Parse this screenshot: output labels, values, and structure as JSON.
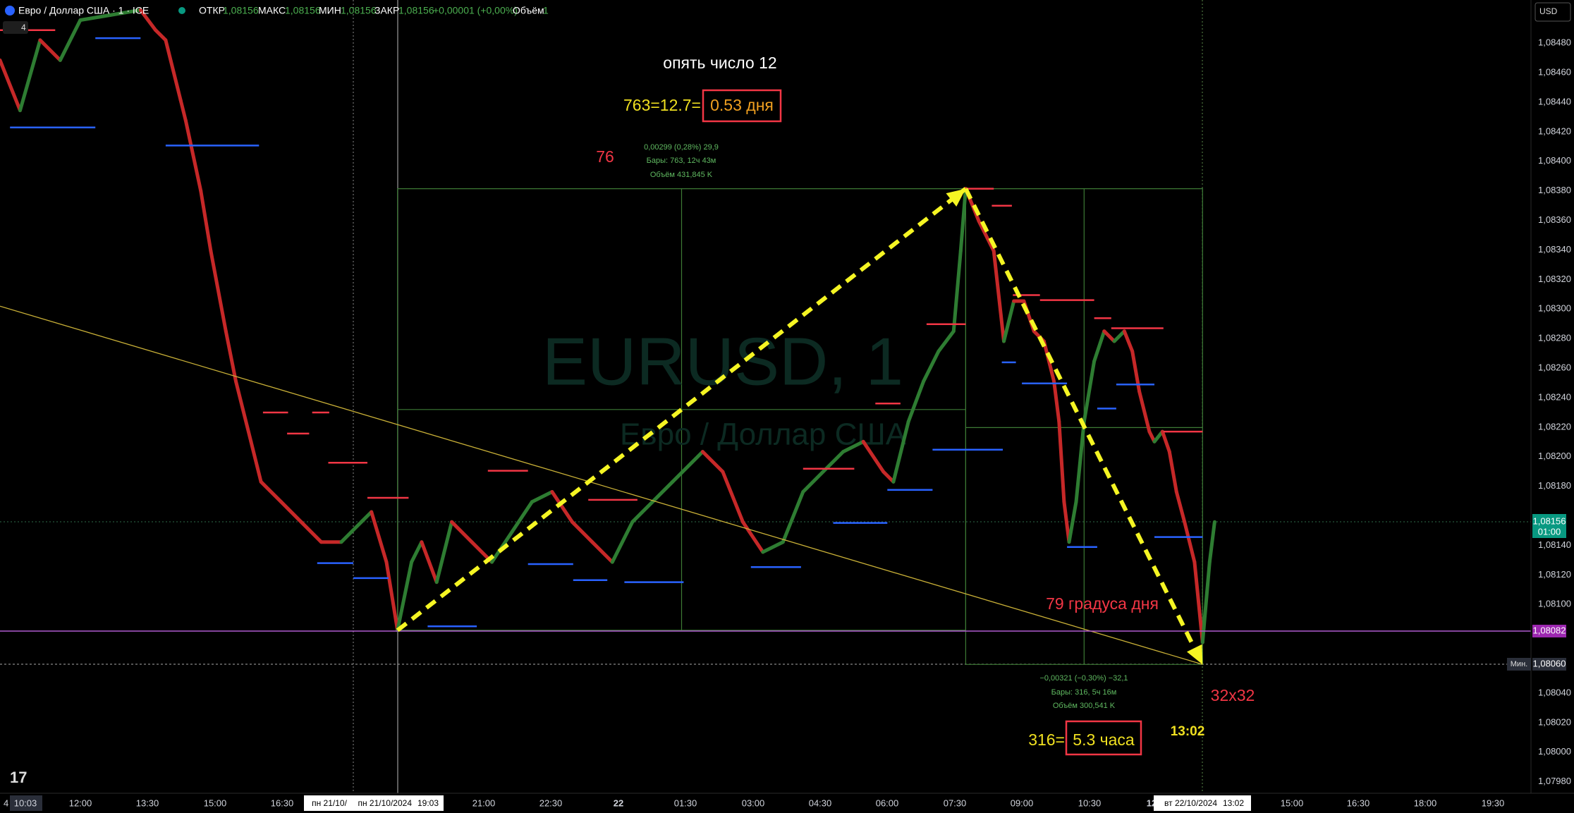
{
  "header": {
    "symbol": "Евро / Доллар США · 1 · ICE",
    "open_label": "ОТКР",
    "open": "1,08156",
    "high_label": "МАКС",
    "high": "1,08156",
    "low_label": "МИН",
    "low": "1,08156",
    "close_label": "ЗАКР",
    "close": "1,08156",
    "change": "+0,00001 (+0,00%)",
    "volume_label": "Объём",
    "volume": "1",
    "indicators": "4"
  },
  "price_axis": {
    "currency": "USD",
    "labels": [
      "1,08480",
      "1,08460",
      "1,08440",
      "1,08420",
      "1,08400",
      "1,08380",
      "1,08360",
      "1,08340",
      "1,08320",
      "1,08300",
      "1,08280",
      "1,08260",
      "1,08240",
      "1,08220",
      "1,08200",
      "1,08180",
      null,
      "1,08140",
      "1,08120",
      "1,08100",
      null,
      null,
      "1,08040",
      "1,08020",
      "1,08000",
      "1,07980"
    ],
    "last_price": "1,08156",
    "countdown": "01:00",
    "line_price": "1,08082",
    "min_tag": "Мин.",
    "min_price": "1,08060"
  },
  "time_axis": {
    "labels": [
      "4",
      "10:03",
      "12:00",
      "13:30",
      "15:00",
      "16:30",
      "пн 21/10/",
      "пн 21/10/2024",
      "19:03",
      "21:00",
      "22:30",
      "22",
      "01:30",
      "03:00",
      "04:30",
      "06:00",
      "07:30",
      "09:00",
      "10:30",
      "12",
      "вт 22/10/2024",
      "13:02",
      "15:00",
      "16:30",
      "18:00",
      "19:30"
    ]
  },
  "watermark": {
    "symbol": "EURUSD, 1",
    "name": "Евро / Доллар США"
  },
  "annotations": {
    "title": "опять число 12",
    "rise_formula": "763=12.7=",
    "rise_days": "0.53 дня",
    "left_number": "76",
    "degrees": "79 градуса дня",
    "size": "32x32",
    "time": "13:02",
    "fall_formula": "316=",
    "fall_hours": "5.3 часа"
  },
  "measurements": [
    {
      "change": "0,00299 (0,28%) 29,9",
      "bars": "Бары: 763, 12ч 43м",
      "volume": "Объём 431,845 K"
    },
    {
      "change": "−0,00321 (−0,30%) −32,1",
      "bars": "Бары: 316, 5ч 16м",
      "volume": "Объём 300,541 K"
    }
  ]
}
